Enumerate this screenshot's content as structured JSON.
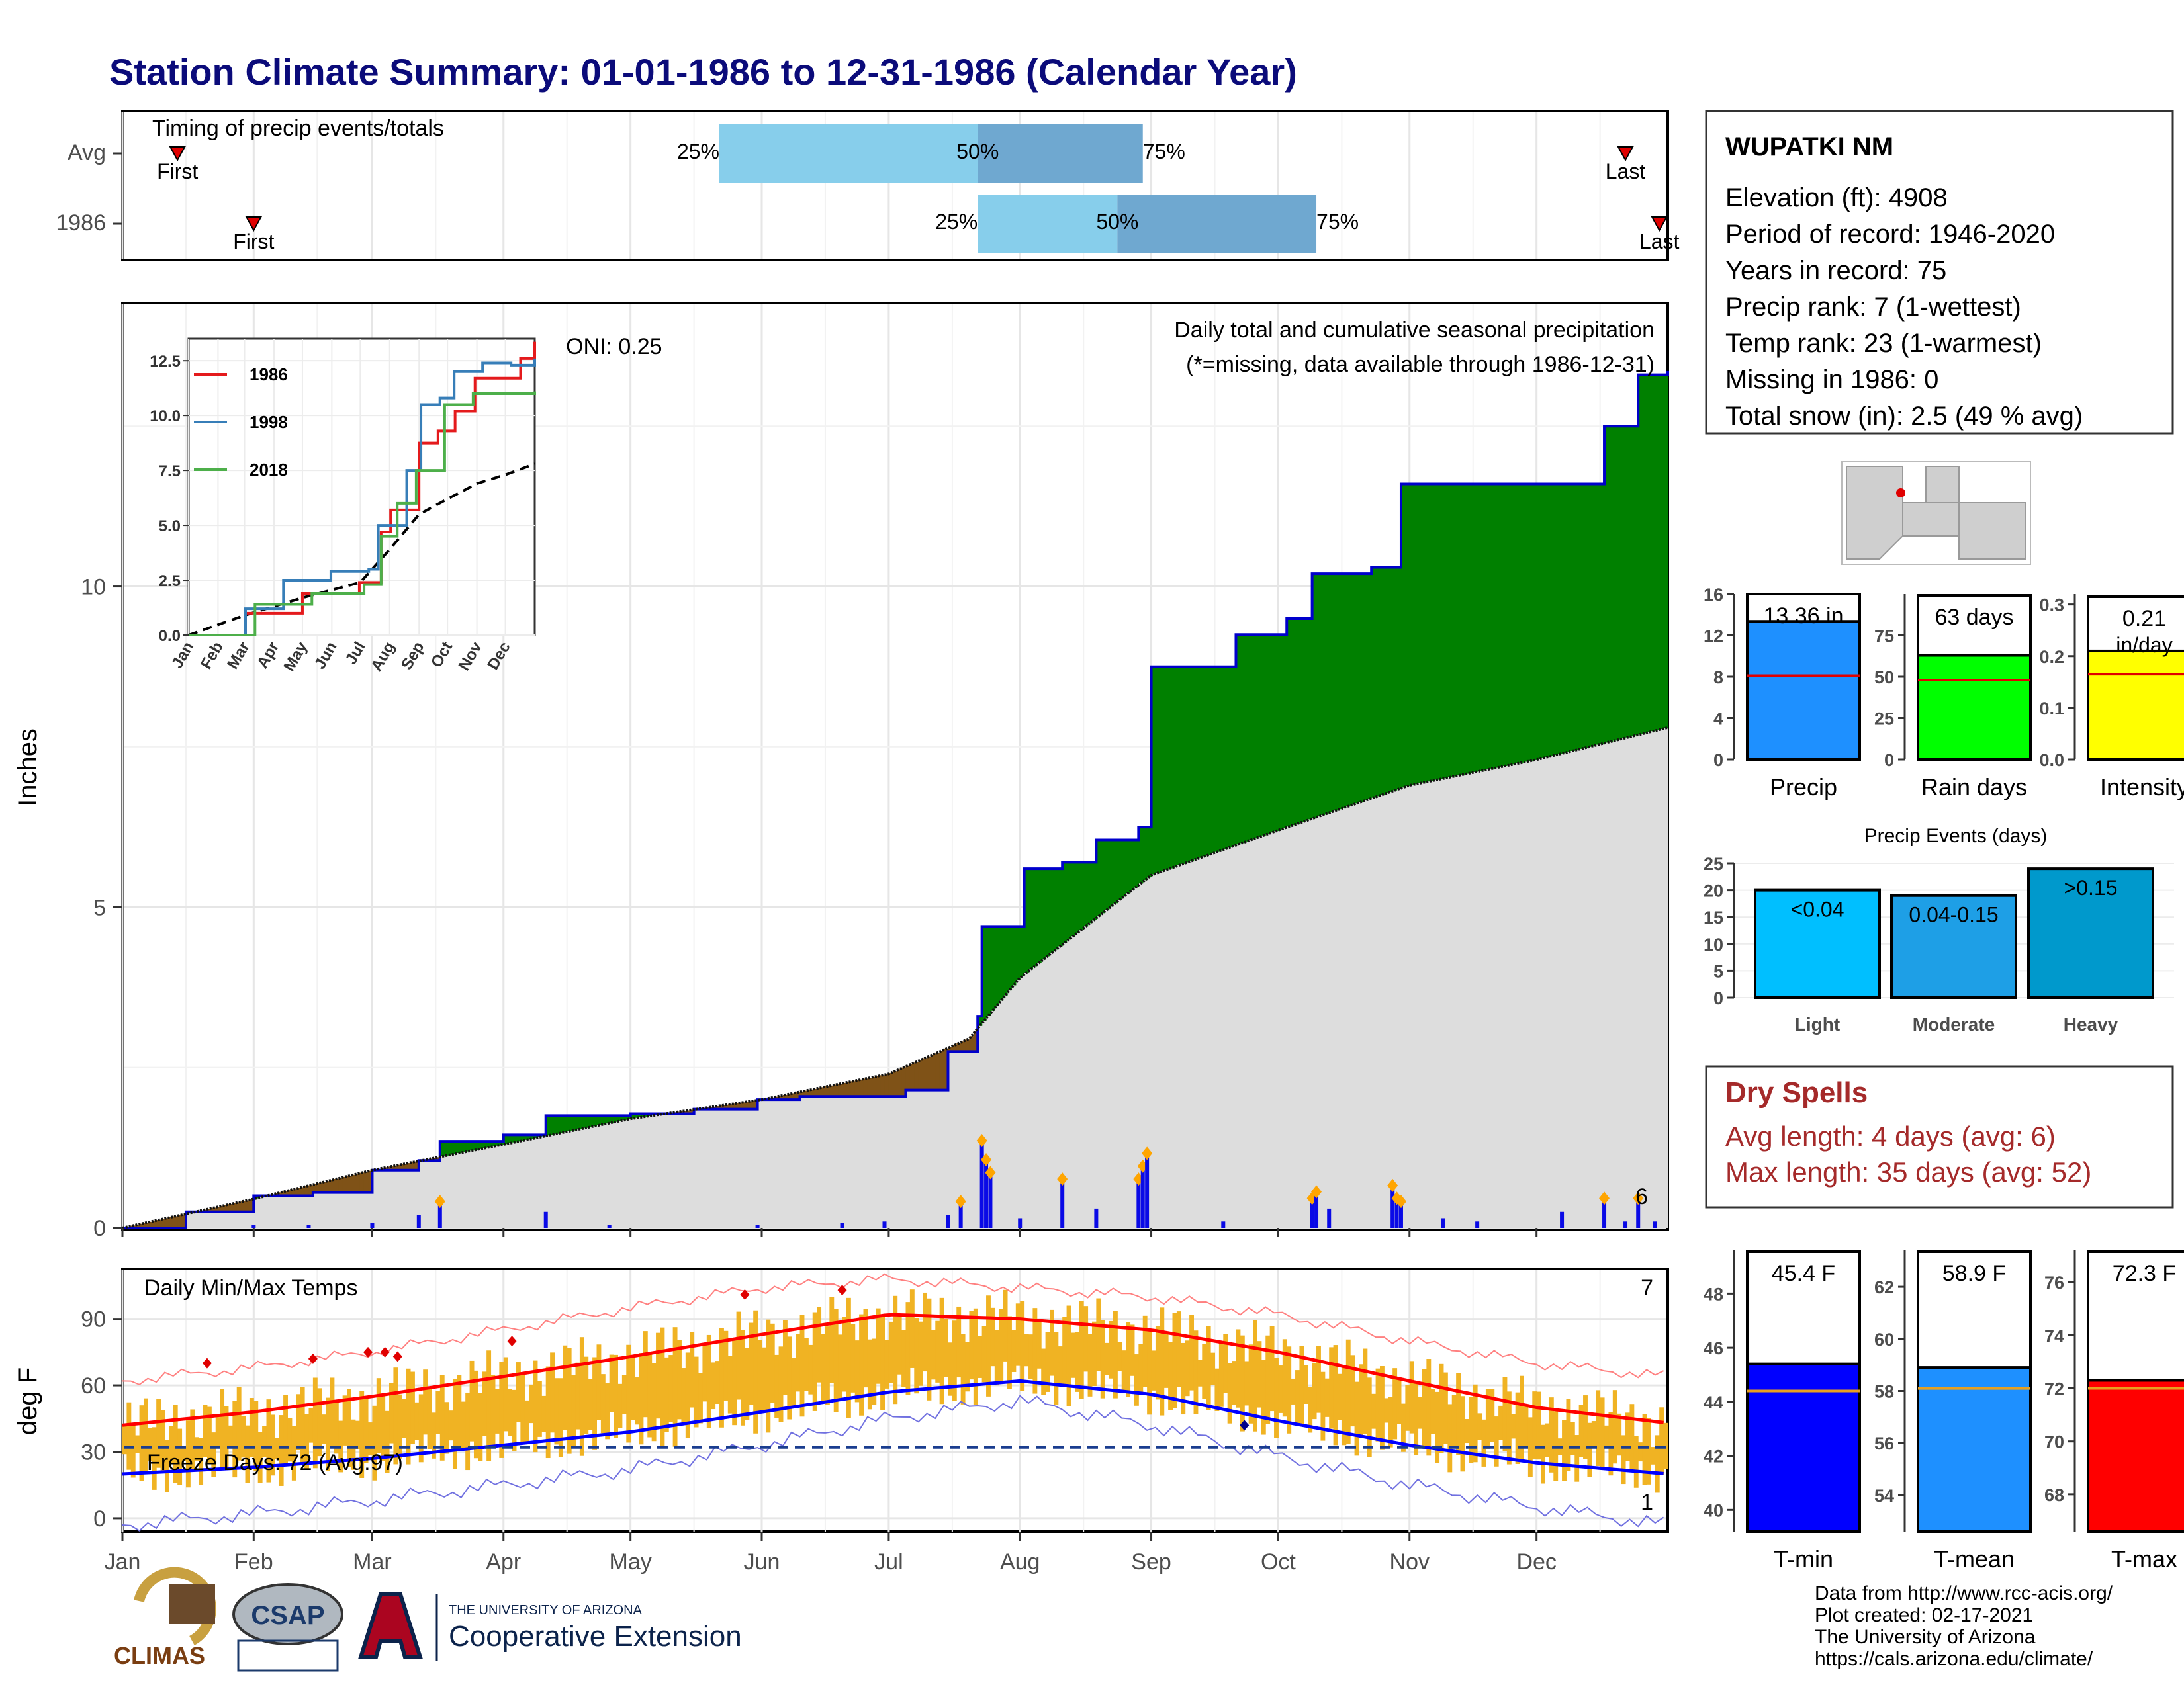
{
  "title": "Station Climate Summary: 01-01-1986 to 12-31-1986 (Calendar Year)",
  "colors": {
    "title": "#0b0b7a",
    "green": "#008000",
    "brown": "#7f5217",
    "grey": "#dddddd",
    "bar": "#0a0ae6",
    "accent": "#ffa500",
    "tempbar": "#f0b323",
    "maxline": "#ff0000",
    "minline": "#0000ff",
    "dryspell": "#a52a2a"
  },
  "timing": {
    "label": "Timing of precip events/totals",
    "rows": [
      "Avg",
      "1986"
    ],
    "first_label": "First",
    "last_label": "Last",
    "pct_labels": [
      "25%",
      "50%",
      "75%"
    ],
    "avg": {
      "first": "Jan 14",
      "q25": "May 22",
      "q50": "Jul 22",
      "q75": "Aug 30",
      "last": "Dec 22"
    },
    "y1986": {
      "first": "Feb 1",
      "q25": "Jul 22",
      "q50": "Aug 24",
      "q75": "Oct 10",
      "last": "Dec 30"
    }
  },
  "precip": {
    "ylabel": "Inches",
    "title": "Daily total and cumulative seasonal precipitation",
    "subtitle": "(*=missing, data available through 1986-12-31)",
    "oni": "ONI: 0.25",
    "y_ticks": [
      "0",
      "5",
      "10"
    ],
    "ylim": [
      0,
      14.4
    ],
    "corner_count": "6",
    "cumulative_1986": [
      [
        0,
        0
      ],
      [
        15,
        0.25
      ],
      [
        31,
        0.5
      ],
      [
        45,
        0.55
      ],
      [
        59,
        0.9
      ],
      [
        70,
        1.05
      ],
      [
        75,
        1.35
      ],
      [
        90,
        1.45
      ],
      [
        100,
        1.75
      ],
      [
        115,
        1.75
      ],
      [
        120,
        1.78
      ],
      [
        135,
        1.85
      ],
      [
        150,
        2.0
      ],
      [
        160,
        2.05
      ],
      [
        175,
        2.05
      ],
      [
        185,
        2.15
      ],
      [
        195,
        2.75
      ],
      [
        202,
        3.3
      ],
      [
        203,
        4.7
      ],
      [
        212,
        4.7
      ],
      [
        213,
        5.6
      ],
      [
        222,
        5.7
      ],
      [
        230,
        6.05
      ],
      [
        240,
        6.25
      ],
      [
        243,
        8.75
      ],
      [
        262,
        8.75
      ],
      [
        263,
        9.25
      ],
      [
        275,
        9.5
      ],
      [
        281,
        10.2
      ],
      [
        295,
        10.3
      ],
      [
        302,
        11.6
      ],
      [
        320,
        11.6
      ],
      [
        335,
        11.6
      ],
      [
        350,
        12.5
      ],
      [
        358,
        13.3
      ],
      [
        365,
        13.36
      ]
    ],
    "cumulative_avg": [
      [
        0,
        0
      ],
      [
        31,
        0.45
      ],
      [
        59,
        0.9
      ],
      [
        90,
        1.3
      ],
      [
        120,
        1.7
      ],
      [
        151,
        2.0
      ],
      [
        181,
        2.4
      ],
      [
        200,
        2.95
      ],
      [
        212,
        3.9
      ],
      [
        243,
        5.5
      ],
      [
        273,
        6.2
      ],
      [
        304,
        6.9
      ],
      [
        334,
        7.3
      ],
      [
        365,
        7.8
      ]
    ],
    "daily_big": [
      [
        203,
        1.3
      ],
      [
        204,
        1.0
      ],
      [
        205,
        0.8
      ],
      [
        212,
        0.15
      ],
      [
        222,
        0.7
      ],
      [
        230,
        0.3
      ],
      [
        240,
        0.7
      ],
      [
        241,
        0.9
      ],
      [
        242,
        1.1
      ],
      [
        260,
        0.1
      ],
      [
        281,
        0.4
      ],
      [
        282,
        0.5
      ],
      [
        285,
        0.3
      ],
      [
        300,
        0.6
      ],
      [
        301,
        0.4
      ],
      [
        302,
        0.35
      ],
      [
        312,
        0.15
      ],
      [
        320,
        0.1
      ],
      [
        340,
        0.25
      ],
      [
        350,
        0.4
      ],
      [
        355,
        0.1
      ],
      [
        358,
        0.4
      ],
      [
        362,
        0.1
      ],
      [
        31,
        0.05
      ],
      [
        44,
        0.05
      ],
      [
        59,
        0.08
      ],
      [
        70,
        0.2
      ],
      [
        75,
        0.35
      ],
      [
        100,
        0.25
      ],
      [
        115,
        0.05
      ],
      [
        150,
        0.05
      ],
      [
        170,
        0.08
      ],
      [
        180,
        0.1
      ],
      [
        195,
        0.2
      ],
      [
        198,
        0.35
      ]
    ],
    "inset": {
      "y_ticks": [
        "0.0",
        "2.5",
        "5.0",
        "7.5",
        "10.0",
        "12.5"
      ],
      "months": [
        "Jan",
        "Feb",
        "Mar",
        "Apr",
        "May",
        "Jun",
        "Jul",
        "Aug",
        "Sep",
        "Oct",
        "Nov",
        "Dec"
      ],
      "series": [
        {
          "name": "1986",
          "color": "#e41a1c",
          "points": [
            [
              0,
              0
            ],
            [
              60,
              1.0
            ],
            [
              120,
              1.9
            ],
            [
              180,
              2.4
            ],
            [
              203,
              4.7
            ],
            [
              213,
              5.7
            ],
            [
              243,
              8.75
            ],
            [
              263,
              9.3
            ],
            [
              281,
              10.2
            ],
            [
              302,
              11.7
            ],
            [
              350,
              12.6
            ],
            [
              365,
              13.36
            ]
          ]
        },
        {
          "name": "1998",
          "color": "#377eb8",
          "points": [
            [
              0,
              0
            ],
            [
              60,
              1.2
            ],
            [
              100,
              2.5
            ],
            [
              150,
              2.9
            ],
            [
              190,
              3.0
            ],
            [
              200,
              5.0
            ],
            [
              230,
              7.5
            ],
            [
              245,
              10.5
            ],
            [
              265,
              10.8
            ],
            [
              280,
              12.0
            ],
            [
              310,
              12.4
            ],
            [
              340,
              12.3
            ],
            [
              365,
              12.6
            ]
          ]
        },
        {
          "name": "2018",
          "color": "#4daf4a",
          "points": [
            [
              0,
              0
            ],
            [
              70,
              1.4
            ],
            [
              130,
              1.9
            ],
            [
              185,
              2.3
            ],
            [
              203,
              4.5
            ],
            [
              220,
              6.0
            ],
            [
              240,
              7.5
            ],
            [
              270,
              10.5
            ],
            [
              300,
              11.0
            ],
            [
              340,
              11.0
            ],
            [
              365,
              11.1
            ]
          ]
        }
      ],
      "avg_points": [
        [
          0,
          0
        ],
        [
          59,
          0.9
        ],
        [
          120,
          1.7
        ],
        [
          181,
          2.4
        ],
        [
          212,
          3.9
        ],
        [
          243,
          5.5
        ],
        [
          273,
          6.2
        ],
        [
          304,
          6.9
        ],
        [
          334,
          7.3
        ],
        [
          365,
          7.8
        ]
      ]
    }
  },
  "temps": {
    "ylabel": "deg F",
    "title": "Daily Min/Max Temps",
    "freeze": "Freeze Days: 72 (Avg:97)",
    "y_ticks": [
      "0",
      "30",
      "60",
      "90"
    ],
    "ylim": [
      -6,
      112
    ],
    "count_max": "7",
    "count_min": "1",
    "avg_max": [
      [
        0,
        42
      ],
      [
        31,
        48
      ],
      [
        59,
        55
      ],
      [
        90,
        64
      ],
      [
        120,
        73
      ],
      [
        151,
        83
      ],
      [
        181,
        92
      ],
      [
        212,
        90
      ],
      [
        243,
        85
      ],
      [
        273,
        75
      ],
      [
        304,
        62
      ],
      [
        334,
        50
      ],
      [
        365,
        43
      ]
    ],
    "avg_min": [
      [
        0,
        20
      ],
      [
        31,
        23
      ],
      [
        59,
        27
      ],
      [
        90,
        33
      ],
      [
        120,
        39
      ],
      [
        151,
        48
      ],
      [
        181,
        57
      ],
      [
        212,
        62
      ],
      [
        243,
        56
      ],
      [
        273,
        44
      ],
      [
        304,
        33
      ],
      [
        334,
        25
      ],
      [
        365,
        20
      ]
    ],
    "record_max": [
      [
        0,
        62
      ],
      [
        31,
        68
      ],
      [
        59,
        75
      ],
      [
        90,
        85
      ],
      [
        120,
        95
      ],
      [
        151,
        104
      ],
      [
        181,
        108
      ],
      [
        212,
        104
      ],
      [
        243,
        100
      ],
      [
        273,
        92
      ],
      [
        304,
        80
      ],
      [
        334,
        70
      ],
      [
        365,
        64
      ]
    ],
    "record_min": [
      [
        0,
        -3
      ],
      [
        31,
        2
      ],
      [
        59,
        8
      ],
      [
        90,
        15
      ],
      [
        120,
        22
      ],
      [
        151,
        33
      ],
      [
        181,
        45
      ],
      [
        212,
        53
      ],
      [
        243,
        42
      ],
      [
        273,
        28
      ],
      [
        304,
        15
      ],
      [
        334,
        5
      ],
      [
        365,
        -3
      ]
    ]
  },
  "months": [
    "Jan",
    "Feb",
    "Mar",
    "Apr",
    "May",
    "Jun",
    "Jul",
    "Aug",
    "Sep",
    "Oct",
    "Nov",
    "Dec"
  ],
  "station": {
    "name": "WUPATKI NM",
    "lines": [
      "Elevation (ft): 4908",
      "Period of record: 1946-2020",
      "Years in record: 75",
      "Precip rank: 7 (1-wettest)",
      "Temp rank: 23 (1-warmest)",
      "Missing in 1986: 0",
      "Total snow (in): 2.5 (49 % avg)"
    ]
  },
  "summary_bars": [
    {
      "label": "Precip",
      "value_label": "13.36 in",
      "value": 13.36,
      "avg": 8.1,
      "ylim": [
        0,
        16
      ],
      "ticks": [
        "0",
        "4",
        "8",
        "12",
        "16"
      ],
      "color": "#1e90ff"
    },
    {
      "label": "Rain days",
      "value_label": "63 days",
      "value": 63,
      "avg": 48,
      "ylim": [
        0,
        100
      ],
      "ticks": [
        "0",
        "25",
        "50",
        "75"
      ],
      "color": "#00ff00"
    },
    {
      "label": "Intensity",
      "value_label": "0.21",
      "value_label2": "in/day",
      "value": 0.21,
      "avg": 0.165,
      "ylim": [
        0,
        0.32
      ],
      "ticks": [
        "0.0",
        "0.1",
        "0.2",
        "0.3"
      ],
      "color": "#ffff00"
    }
  ],
  "events": {
    "title": "Precip Events (days)",
    "ticks": [
      "0",
      "5",
      "10",
      "15",
      "20",
      "25"
    ],
    "ylim": [
      0,
      25
    ],
    "bars": [
      {
        "label": "Light",
        "value_label": "<0.04",
        "value": 20,
        "color": "#00bfff"
      },
      {
        "label": "Moderate",
        "value_label": "0.04-0.15",
        "value": 19,
        "color": "#1e9fe6"
      },
      {
        "label": "Heavy",
        "value_label": ">0.15",
        "value": 24,
        "color": "#0099cc"
      }
    ]
  },
  "dry": {
    "title": "Dry Spells",
    "avg": "Avg length: 4 days (avg: 6)",
    "max": "Max length: 35 days (avg: 52)"
  },
  "temp_bars": [
    {
      "label": "T-min",
      "value_label": "45.4 F",
      "value": 45.4,
      "avg": 44.4,
      "ylim": [
        39.2,
        49.6
      ],
      "ticks": [
        "40",
        "42",
        "44",
        "46",
        "48"
      ],
      "color": "#0000ff"
    },
    {
      "label": "T-mean",
      "value_label": "58.9 F",
      "value": 58.9,
      "avg": 58.1,
      "ylim": [
        52.6,
        63.4
      ],
      "ticks": [
        "54",
        "56",
        "58",
        "60",
        "62"
      ],
      "color": "#1e90ff"
    },
    {
      "label": "T-max",
      "value_label": "72.3 F",
      "value": 72.3,
      "avg": 72.0,
      "ylim": [
        66.6,
        77.2
      ],
      "ticks": [
        "68",
        "70",
        "72",
        "74",
        "76"
      ],
      "color": "#ff0000"
    }
  ],
  "footer": {
    "credits": [
      "Data from http://www.rcc-acis.org/",
      "Plot created: 02-17-2021",
      "The University of Arizona",
      "https://cals.arizona.edu/climate/"
    ],
    "logo_climas": "CLIMAS",
    "logo_csap": "CSAP",
    "logo_ua_small": "THE UNIVERSITY OF ARIZONA",
    "logo_ua_big": "Cooperative Extension"
  }
}
